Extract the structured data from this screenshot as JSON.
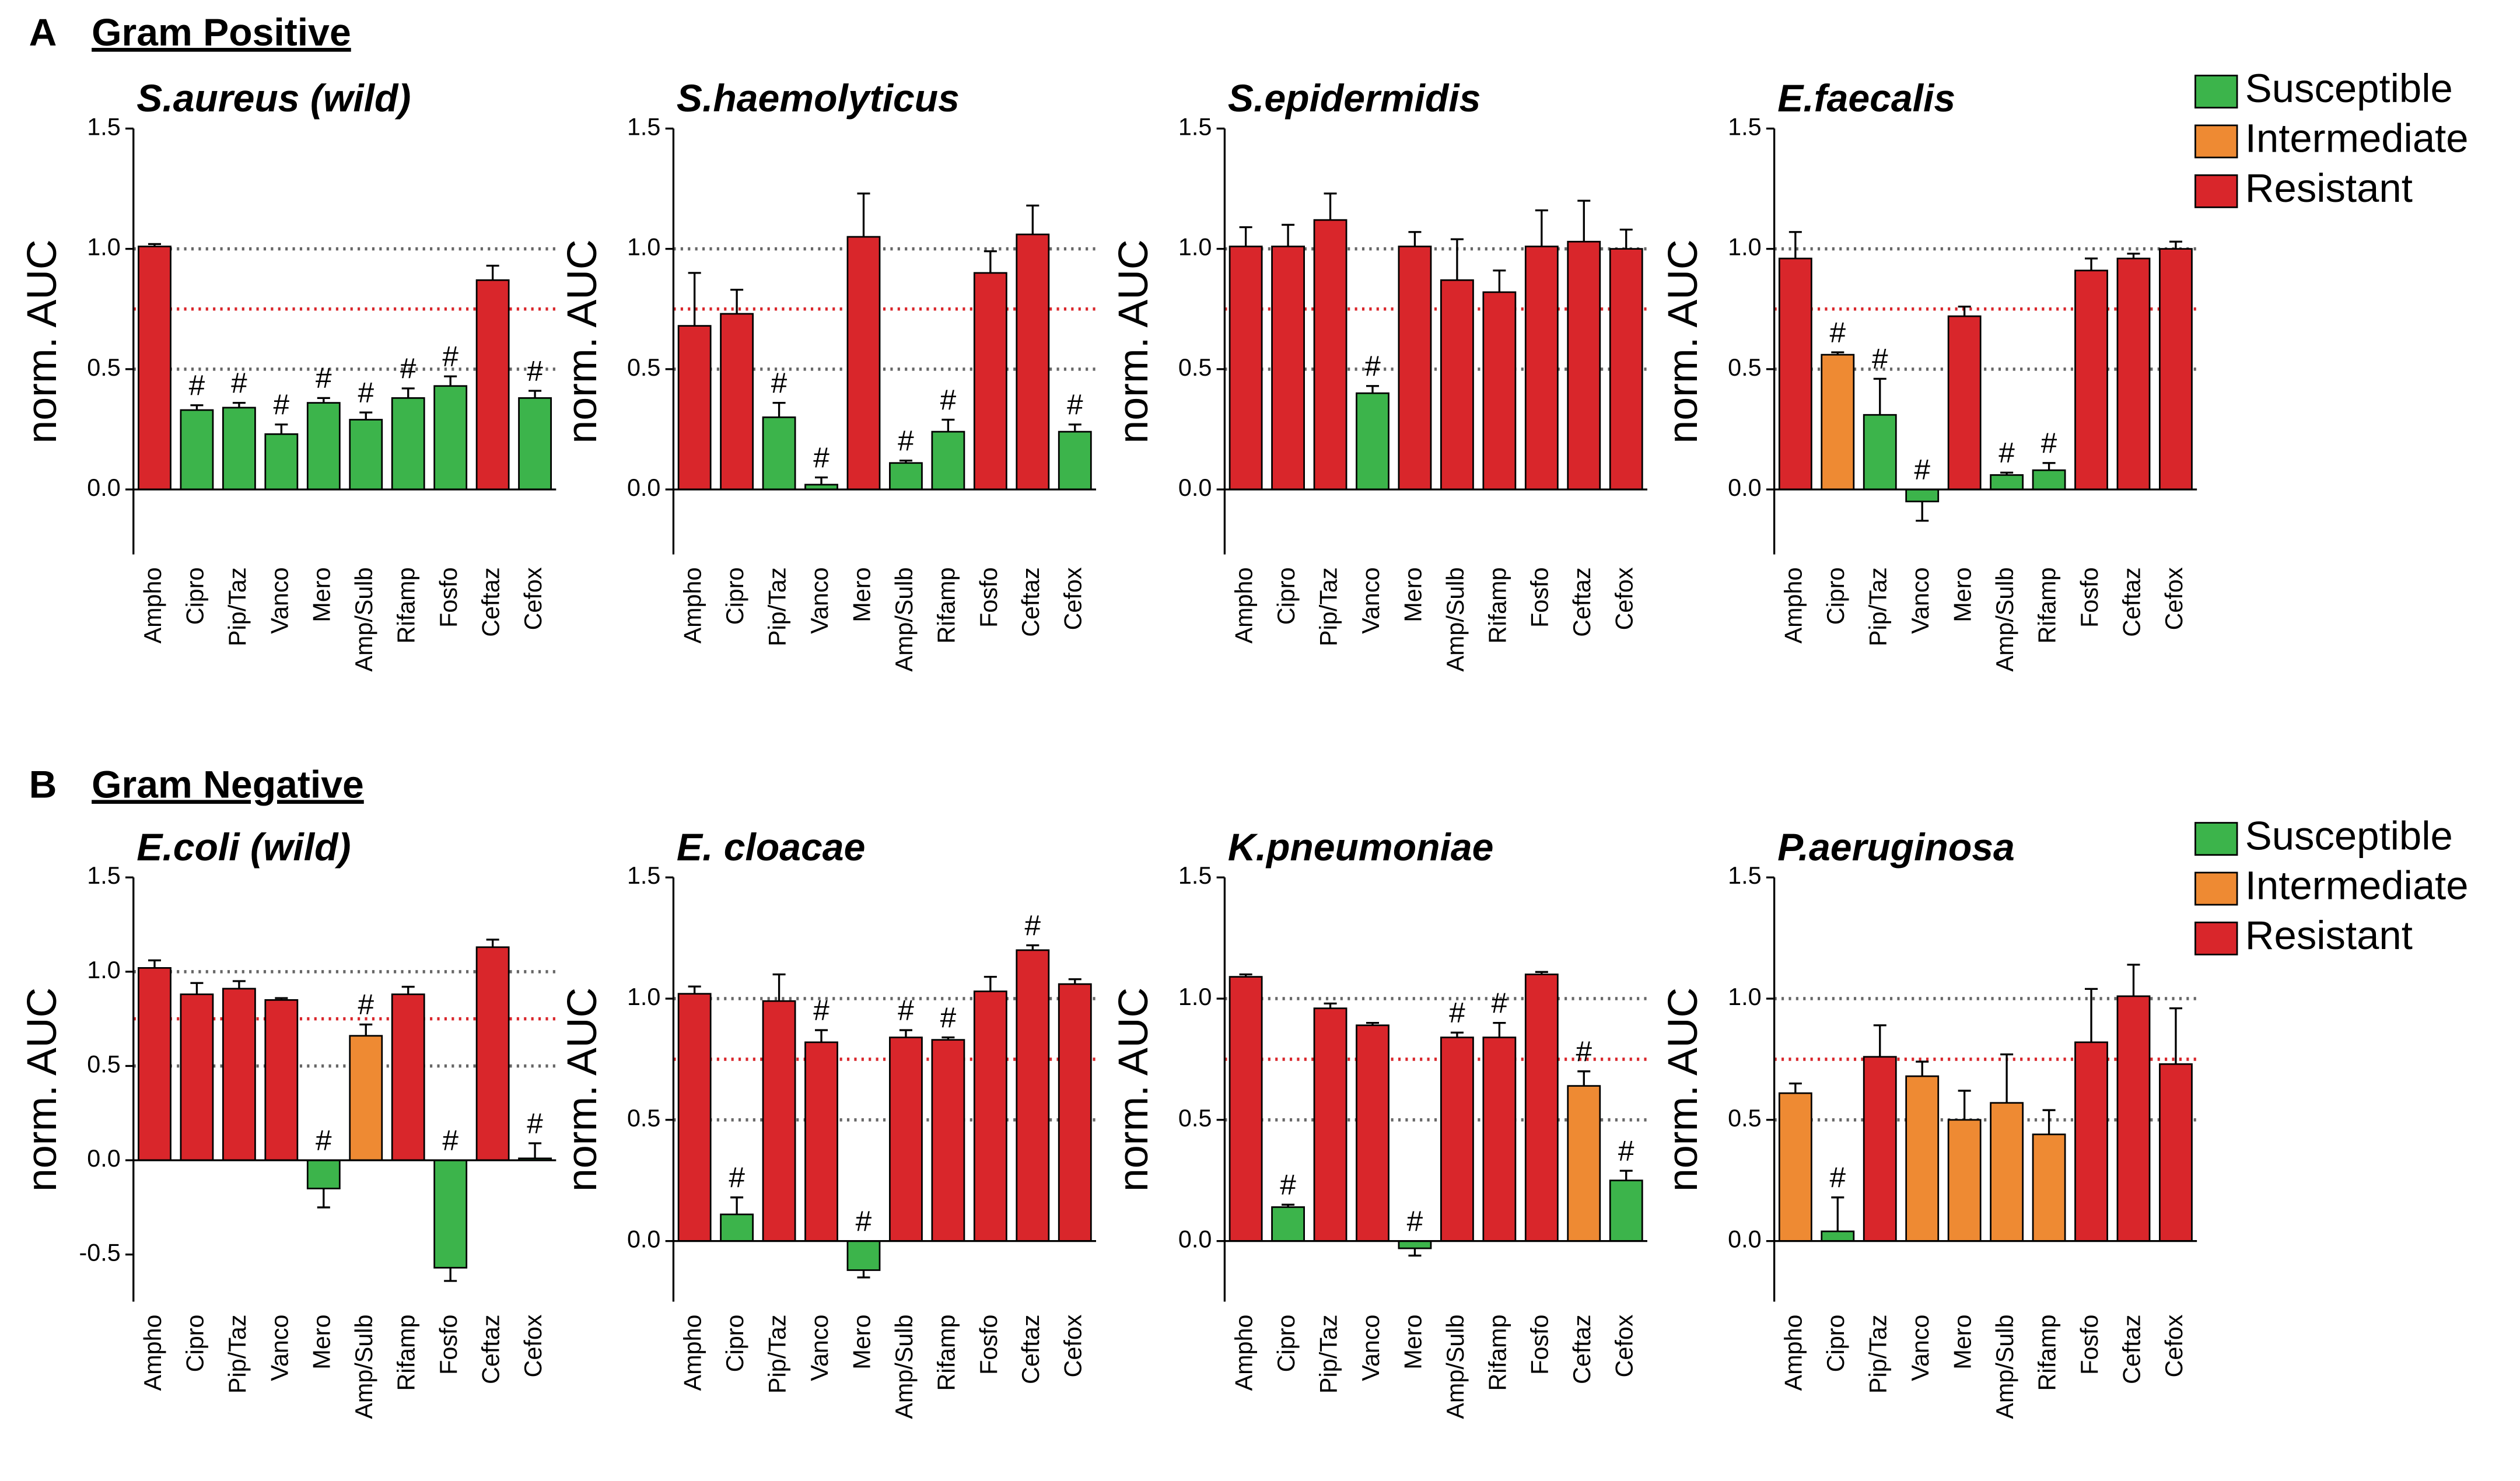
{
  "sections": [
    {
      "letter": "A",
      "title": "Gram Positive",
      "legend": [
        {
          "name": "Susceptible",
          "color": "#3cb44b"
        },
        {
          "name": "Intermediate",
          "color": "#ee8a33"
        },
        {
          "name": "Resistant",
          "color": "#d9262b"
        }
      ]
    },
    {
      "letter": "B",
      "title": "Gram Negative",
      "legend": [
        {
          "name": "Susceptible",
          "color": "#3cb44b"
        },
        {
          "name": "Intermediate",
          "color": "#ee8a33"
        },
        {
          "name": "Resistant",
          "color": "#d9262b"
        }
      ]
    }
  ],
  "chart_data": [
    {
      "type": "bar",
      "title": "S.aureus (wild)",
      "ylabel": "norm. AUC",
      "categories": [
        "Ampho",
        "Cipro",
        "Pip/Taz",
        "Vanco",
        "Mero",
        "Amp/Sulb",
        "Rifamp",
        "Fosfo",
        "Ceftaz",
        "Cefox"
      ],
      "values": [
        1.01,
        0.33,
        0.34,
        0.23,
        0.36,
        0.29,
        0.38,
        0.43,
        0.87,
        0.38
      ],
      "errors": [
        0.01,
        0.02,
        0.02,
        0.04,
        0.02,
        0.03,
        0.04,
        0.04,
        0.06,
        0.03
      ],
      "colors": [
        "#d9262b",
        "#3cb44b",
        "#3cb44b",
        "#3cb44b",
        "#3cb44b",
        "#3cb44b",
        "#3cb44b",
        "#3cb44b",
        "#d9262b",
        "#3cb44b"
      ],
      "annotations": [
        null,
        "#",
        "#",
        "#",
        "#",
        "#",
        "#",
        "#",
        null,
        "#"
      ],
      "ylim": [
        -0.27,
        1.5
      ],
      "yticks": [
        {
          "value": 0,
          "label": "0.0"
        },
        0.5,
        {
          "value": 1,
          "label": "1.0"
        },
        1.5
      ],
      "reference_lines": [
        {
          "value": 1,
          "color": "#666666"
        },
        {
          "value": 0.75,
          "color": "#d9262b"
        },
        {
          "value": 0.5,
          "color": "#666666"
        }
      ]
    },
    {
      "type": "bar",
      "title": "S.haemolyticus",
      "ylabel": "norm. AUC",
      "categories": [
        "Ampho",
        "Cipro",
        "Pip/Taz",
        "Vanco",
        "Mero",
        "Amp/Sulb",
        "Rifamp",
        "Fosfo",
        "Ceftaz",
        "Cefox"
      ],
      "values": [
        0.68,
        0.73,
        0.3,
        0.02,
        1.05,
        0.11,
        0.24,
        0.9,
        1.06,
        0.24
      ],
      "errors": [
        0.22,
        0.1,
        0.06,
        0.03,
        0.18,
        0.01,
        0.05,
        0.09,
        0.12,
        0.03
      ],
      "colors": [
        "#d9262b",
        "#d9262b",
        "#3cb44b",
        "#3cb44b",
        "#d9262b",
        "#3cb44b",
        "#3cb44b",
        "#d9262b",
        "#d9262b",
        "#3cb44b"
      ],
      "annotations": [
        null,
        null,
        "#",
        "#",
        null,
        "#",
        "#",
        null,
        null,
        "#"
      ],
      "ylim": [
        -0.27,
        1.5
      ],
      "yticks": [
        {
          "value": 0,
          "label": "0.0"
        },
        0.5,
        {
          "value": 1,
          "label": "1.0"
        },
        1.5
      ],
      "reference_lines": [
        {
          "value": 1,
          "color": "#666666"
        },
        {
          "value": 0.75,
          "color": "#d9262b"
        },
        {
          "value": 0.5,
          "color": "#666666"
        }
      ]
    },
    {
      "type": "bar",
      "title": "S.epidermidis",
      "ylabel": "norm. AUC",
      "categories": [
        "Ampho",
        "Cipro",
        "Pip/Taz",
        "Vanco",
        "Mero",
        "Amp/Sulb",
        "Rifamp",
        "Fosfo",
        "Ceftaz",
        "Cefox"
      ],
      "values": [
        1.01,
        1.01,
        1.12,
        0.4,
        1.01,
        0.87,
        0.82,
        1.01,
        1.03,
        1.0
      ],
      "errors": [
        0.08,
        0.09,
        0.11,
        0.03,
        0.06,
        0.17,
        0.09,
        0.15,
        0.17,
        0.08
      ],
      "colors": [
        "#d9262b",
        "#d9262b",
        "#d9262b",
        "#3cb44b",
        "#d9262b",
        "#d9262b",
        "#d9262b",
        "#d9262b",
        "#d9262b",
        "#d9262b"
      ],
      "annotations": [
        null,
        null,
        null,
        "#",
        null,
        null,
        null,
        null,
        null,
        null
      ],
      "ylim": [
        -0.27,
        1.5
      ],
      "yticks": [
        {
          "value": 0,
          "label": "0.0"
        },
        0.5,
        {
          "value": 1,
          "label": "1.0"
        },
        1.5
      ],
      "reference_lines": [
        {
          "value": 1,
          "color": "#666666"
        },
        {
          "value": 0.75,
          "color": "#d9262b"
        },
        {
          "value": 0.5,
          "color": "#666666"
        }
      ]
    },
    {
      "type": "bar",
      "title": "E.faecalis",
      "ylabel": "norm. AUC",
      "categories": [
        "Ampho",
        "Cipro",
        "Pip/Taz",
        "Vanco",
        "Mero",
        "Amp/Sulb",
        "Rifamp",
        "Fosfo",
        "Ceftaz",
        "Cefox"
      ],
      "values": [
        0.96,
        0.56,
        0.31,
        -0.05,
        0.72,
        0.06,
        0.08,
        0.91,
        0.96,
        1.0
      ],
      "errors": [
        0.11,
        0.01,
        0.15,
        0.08,
        0.04,
        0.01,
        0.03,
        0.05,
        0.02,
        0.03
      ],
      "colors": [
        "#d9262b",
        "#ee8a33",
        "#3cb44b",
        "#3cb44b",
        "#d9262b",
        "#3cb44b",
        "#3cb44b",
        "#d9262b",
        "#d9262b",
        "#d9262b"
      ],
      "annotations": [
        null,
        "#",
        "#",
        "#",
        null,
        "#",
        "#",
        null,
        null,
        null
      ],
      "ylim": [
        -0.27,
        1.5
      ],
      "yticks": [
        {
          "value": 0,
          "label": "0.0"
        },
        0.5,
        {
          "value": 1,
          "label": "1.0"
        },
        1.5
      ],
      "reference_lines": [
        {
          "value": 1,
          "color": "#666666"
        },
        {
          "value": 0.75,
          "color": "#d9262b"
        },
        {
          "value": 0.5,
          "color": "#666666"
        }
      ]
    },
    {
      "type": "bar",
      "title": "E.coli (wild)",
      "ylabel": "norm. AUC",
      "categories": [
        "Ampho",
        "Cipro",
        "Pip/Taz",
        "Vanco",
        "Mero",
        "Amp/Sulb",
        "Rifamp",
        "Fosfo",
        "Ceftaz",
        "Cefox"
      ],
      "values": [
        1.02,
        0.88,
        0.91,
        0.85,
        -0.15,
        0.66,
        0.88,
        -0.57,
        1.13,
        0.01
      ],
      "errors": [
        0.04,
        0.06,
        0.04,
        0.01,
        0.1,
        0.06,
        0.04,
        0.07,
        0.04,
        0.08
      ],
      "colors": [
        "#d9262b",
        "#d9262b",
        "#d9262b",
        "#d9262b",
        "#3cb44b",
        "#ee8a33",
        "#d9262b",
        "#3cb44b",
        "#d9262b",
        "#3cb44b"
      ],
      "annotations": [
        null,
        null,
        null,
        null,
        "#",
        "#",
        null,
        "#",
        null,
        "#"
      ],
      "ylim": [
        -0.75,
        1.5
      ],
      "yticks": [
        -0.5,
        {
          "value": 0,
          "label": "0.0"
        },
        0.5,
        {
          "value": 1,
          "label": "1.0"
        },
        1.5
      ],
      "reference_lines": [
        {
          "value": 1,
          "color": "#666666"
        },
        {
          "value": 0.75,
          "color": "#d9262b"
        },
        {
          "value": 0.5,
          "color": "#666666"
        }
      ]
    },
    {
      "type": "bar",
      "title": "E. cloacae",
      "ylabel": "norm. AUC",
      "categories": [
        "Ampho",
        "Cipro",
        "Pip/Taz",
        "Vanco",
        "Mero",
        "Amp/Sulb",
        "Rifamp",
        "Fosfo",
        "Ceftaz",
        "Cefox"
      ],
      "values": [
        1.02,
        0.11,
        0.99,
        0.82,
        -0.12,
        0.84,
        0.83,
        1.03,
        1.2,
        1.06
      ],
      "errors": [
        0.03,
        0.07,
        0.11,
        0.05,
        0.03,
        0.03,
        0.01,
        0.06,
        0.02,
        0.02
      ],
      "colors": [
        "#d9262b",
        "#3cb44b",
        "#d9262b",
        "#d9262b",
        "#3cb44b",
        "#d9262b",
        "#d9262b",
        "#d9262b",
        "#d9262b",
        "#d9262b"
      ],
      "annotations": [
        null,
        "#",
        null,
        "#",
        "#",
        "#",
        "#",
        null,
        "#",
        null
      ],
      "ylim": [
        -0.25,
        1.5
      ],
      "yticks": [
        {
          "value": 0,
          "label": "0.0"
        },
        0.5,
        {
          "value": 1,
          "label": "1.0"
        },
        1.5
      ],
      "reference_lines": [
        {
          "value": 1,
          "color": "#666666"
        },
        {
          "value": 0.75,
          "color": "#d9262b"
        },
        {
          "value": 0.5,
          "color": "#666666"
        }
      ]
    },
    {
      "type": "bar",
      "title": "K.pneumoniae",
      "ylabel": "norm. AUC",
      "categories": [
        "Ampho",
        "Cipro",
        "Pip/Taz",
        "Vanco",
        "Mero",
        "Amp/Sulb",
        "Rifamp",
        "Fosfo",
        "Ceftaz",
        "Cefox"
      ],
      "values": [
        1.09,
        0.14,
        0.96,
        0.89,
        -0.03,
        0.84,
        0.84,
        1.1,
        0.64,
        0.25
      ],
      "errors": [
        0.01,
        0.01,
        0.02,
        0.01,
        0.03,
        0.02,
        0.06,
        0.01,
        0.06,
        0.04
      ],
      "colors": [
        "#d9262b",
        "#3cb44b",
        "#d9262b",
        "#d9262b",
        "#3cb44b",
        "#d9262b",
        "#d9262b",
        "#d9262b",
        "#ee8a33",
        "#3cb44b"
      ],
      "annotations": [
        null,
        "#",
        null,
        null,
        "#",
        "#",
        "#",
        null,
        "#",
        "#"
      ],
      "ylim": [
        -0.25,
        1.5
      ],
      "yticks": [
        {
          "value": 0,
          "label": "0.0"
        },
        0.5,
        {
          "value": 1,
          "label": "1.0"
        },
        1.5
      ],
      "reference_lines": [
        {
          "value": 1,
          "color": "#666666"
        },
        {
          "value": 0.75,
          "color": "#d9262b"
        },
        {
          "value": 0.5,
          "color": "#666666"
        }
      ]
    },
    {
      "type": "bar",
      "title": "P.aeruginosa",
      "ylabel": "norm. AUC",
      "categories": [
        "Ampho",
        "Cipro",
        "Pip/Taz",
        "Vanco",
        "Mero",
        "Amp/Sulb",
        "Rifamp",
        "Fosfo",
        "Ceftaz",
        "Cefox"
      ],
      "values": [
        0.61,
        0.04,
        0.76,
        0.68,
        0.5,
        0.57,
        0.44,
        0.82,
        1.01,
        0.73
      ],
      "errors": [
        0.04,
        0.14,
        0.13,
        0.06,
        0.12,
        0.2,
        0.1,
        0.22,
        0.13,
        0.23
      ],
      "colors": [
        "#ee8a33",
        "#3cb44b",
        "#d9262b",
        "#ee8a33",
        "#ee8a33",
        "#ee8a33",
        "#ee8a33",
        "#d9262b",
        "#d9262b",
        "#d9262b"
      ],
      "annotations": [
        null,
        "#",
        null,
        null,
        null,
        null,
        null,
        null,
        null,
        null
      ],
      "ylim": [
        -0.25,
        1.5
      ],
      "yticks": [
        {
          "value": 0,
          "label": "0.0"
        },
        0.5,
        {
          "value": 1,
          "label": "1.0"
        },
        1.5
      ],
      "reference_lines": [
        {
          "value": 1,
          "color": "#666666"
        },
        {
          "value": 0.75,
          "color": "#d9262b"
        },
        {
          "value": 0.5,
          "color": "#666666"
        }
      ]
    }
  ]
}
